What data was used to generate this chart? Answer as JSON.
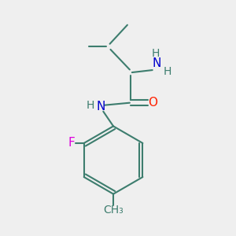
{
  "background_color": "#efefef",
  "bond_color": "#3d7d6e",
  "bond_width": 1.5,
  "atom_colors": {
    "N": "#0000cd",
    "O": "#ff2000",
    "F": "#dd00dd",
    "C": "#3d7d6e",
    "H": "#3d7d6e"
  },
  "font_size": 10,
  "figsize": [
    3.0,
    3.0
  ],
  "dpi": 100
}
